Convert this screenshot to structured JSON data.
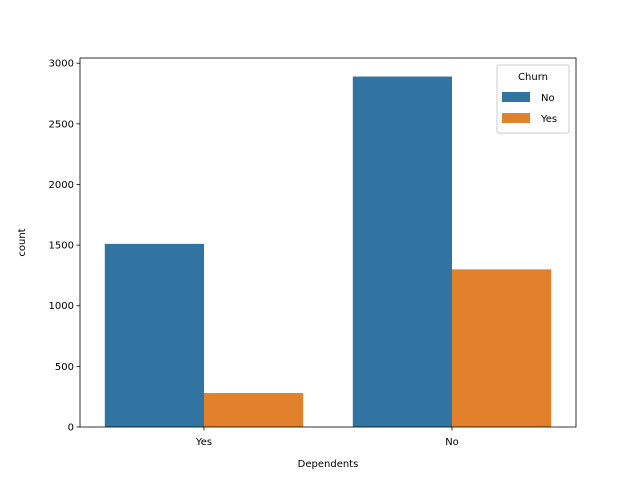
{
  "chart_data": {
    "type": "bar",
    "xlabel": "Dependents",
    "ylabel": "count",
    "categories": [
      "Yes",
      "No"
    ],
    "series": [
      {
        "name": "No",
        "values": [
          1510,
          2890
        ],
        "color": "#3274a1"
      },
      {
        "name": "Yes",
        "values": [
          280,
          1300
        ],
        "color": "#e1812c"
      }
    ],
    "ylim": [
      0,
      3043
    ],
    "yticks": [
      0,
      500,
      1000,
      1500,
      2000,
      2500,
      3000
    ],
    "legend": {
      "title": "Churn",
      "placement": "top-right"
    },
    "grid": false
  }
}
